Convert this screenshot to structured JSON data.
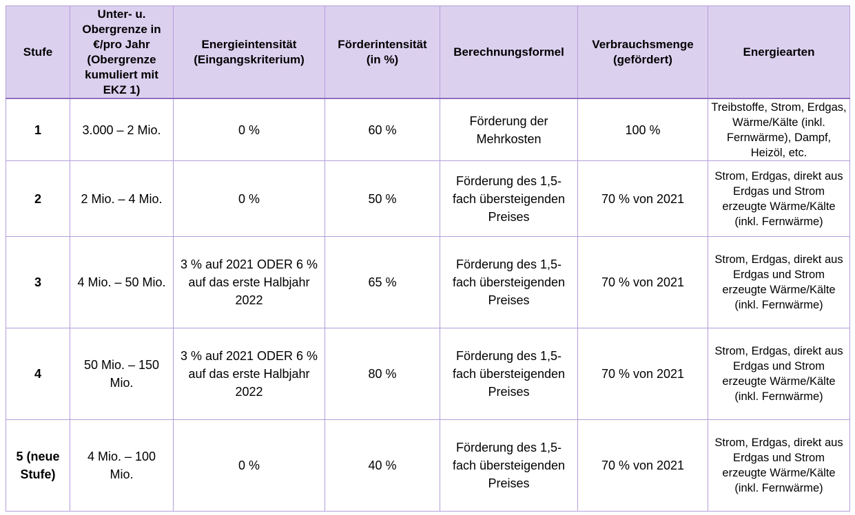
{
  "table": {
    "columns": [
      "Stufe",
      "Unter- u. Obergrenze in €/pro Jahr (Obergrenze kumuliert mit EKZ 1)",
      "Energieintensität (Eingangskriterium)",
      "Förderintensität (in %)",
      "Berechnungsformel",
      "Verbrauchsmenge (gefördert)",
      "Energiearten"
    ],
    "rows": [
      [
        "1",
        "3.000 – 2 Mio.",
        "0 %",
        "60 %",
        "Förderung der Mehrkosten",
        "100 %",
        "Treibstoffe, Strom, Erdgas, Wärme/Kälte (inkl. Fernwärme), Dampf, Heizöl, etc."
      ],
      [
        "2",
        "2 Mio. – 4 Mio.",
        "0 %",
        "50 %",
        "Förderung des 1,5-fach übersteigenden Preises",
        "70 % von 2021",
        "Strom, Erdgas, direkt aus Erdgas und Strom erzeugte Wärme/Kälte (inkl. Fernwärme)"
      ],
      [
        "3",
        "4 Mio. – 50 Mio.",
        "3 % auf 2021 ODER 6 % auf das erste Halbjahr 2022",
        "65 %",
        "Förderung des 1,5-fach übersteigenden Preises",
        "70 % von 2021",
        "Strom, Erdgas, direkt aus Erdgas und Strom erzeugte Wärme/Kälte (inkl. Fernwärme)"
      ],
      [
        "4",
        "50 Mio. – 150 Mio.",
        "3 % auf 2021 ODER 6 % auf das erste Halbjahr 2022",
        "80 %",
        "Förderung des 1,5-fach übersteigenden Preises",
        "70 % von 2021",
        "Strom, Erdgas, direkt aus Erdgas und Strom erzeugte Wärme/Kälte (inkl. Fernwärme)"
      ],
      [
        "5 (neue Stufe)",
        "4 Mio. – 100 Mio.",
        "0 %",
        "40 %",
        "Förderung des 1,5-fach übersteigenden Preises",
        "70 % von 2021",
        "Strom, Erdgas, direkt aus Erdgas und Strom erzeugte Wärme/Kälte (inkl. Fernwärme)"
      ]
    ]
  }
}
